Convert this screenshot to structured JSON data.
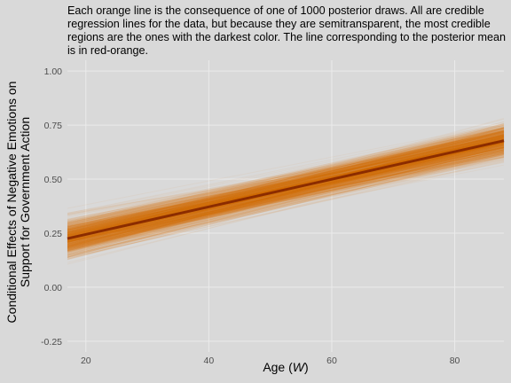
{
  "title": "Each orange line is the consequence of one of 1000 posterior draws. All are credible regression lines for the data, but because they are semitransparent, the most credible regions are the ones with the darkest color. The line corresponding to the posterior mean is in red-orange.",
  "chart_data": {
    "type": "line",
    "title": "Each orange line is the consequence of one of 1000 posterior draws. All are credible regression lines for the data, but because they are semitransparent, the most credible regions are the ones with the darkest color. The line corresponding to the posterior mean is in red-orange.",
    "xlabel_text": "Age (",
    "xlabel_var": "W",
    "xlabel_close": ")",
    "ylabel_line1": "Conditional Effects of Negative Emotions on",
    "ylabel_line2": "Support for Government Action",
    "xlim": [
      17,
      88
    ],
    "ylim": [
      -0.3,
      1.05
    ],
    "xticks": [
      20,
      40,
      60,
      80
    ],
    "yticks": [
      -0.25,
      0.0,
      0.25,
      0.5,
      0.75,
      1.0
    ],
    "ytick_labels": [
      "-0.25",
      "0.00",
      "0.25",
      "0.50",
      "0.75",
      "1.00"
    ],
    "grid": true,
    "n_draws": 1000,
    "mean_line": {
      "x": [
        17,
        88
      ],
      "y": [
        0.225,
        0.678
      ]
    },
    "draw_band_at_x17": [
      0.09,
      0.39
    ],
    "draw_band_at_x88": [
      0.54,
      0.83
    ],
    "colors": {
      "background": "#d9d9d9",
      "grid": "#ebebeb",
      "draws": "#d97f0e",
      "mean": "#8b2c00"
    }
  }
}
